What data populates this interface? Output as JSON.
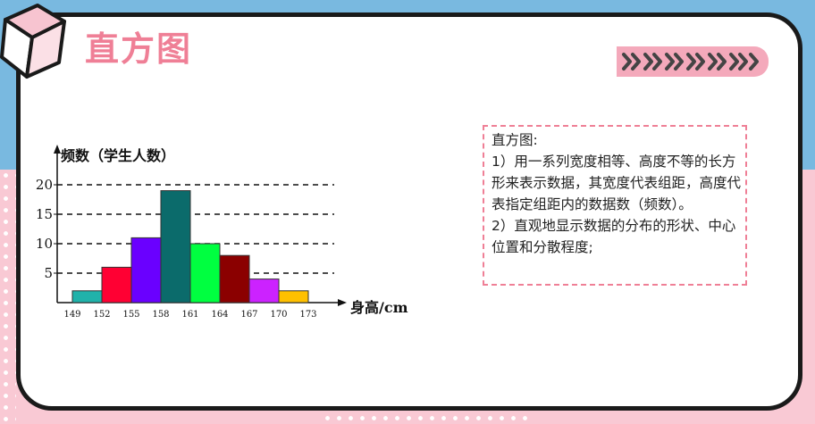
{
  "slide": {
    "title": "直方图"
  },
  "decor": {
    "chevrons_icon": "chevron-double-right-icon",
    "cube_icon": "cube-icon",
    "colors": {
      "accent_pink": "#ef7f96",
      "bg_blue": "#79b9e0",
      "bg_pink": "#f9c9d4"
    }
  },
  "description": {
    "heading": "直方图:",
    "point1": "1）用一系列宽度相等、高度不等的长方形来表示数据，其宽度代表组距，高度代表指定组距内的数据数（频数）。",
    "point2": "2）直观地显示数据的分布的形状、中心位置和分散程度;"
  },
  "chart_data": {
    "type": "bar",
    "ylabel": "频数（学生人数）",
    "xlabel": "身高/cm",
    "x_ticks": [
      "149",
      "152",
      "155",
      "158",
      "161",
      "164",
      "167",
      "170",
      "173"
    ],
    "bins": [
      {
        "from": 149,
        "to": 152,
        "value": 2,
        "color": "#20b2aa"
      },
      {
        "from": 152,
        "to": 155,
        "value": 6,
        "color": "#ff0033"
      },
      {
        "from": 155,
        "to": 158,
        "value": 11,
        "color": "#6a00ff"
      },
      {
        "from": 158,
        "to": 161,
        "value": 19,
        "color": "#0b6b6b"
      },
      {
        "from": 161,
        "to": 164,
        "value": 10,
        "color": "#00ff40"
      },
      {
        "from": 164,
        "to": 167,
        "value": 8,
        "color": "#8b0000"
      },
      {
        "from": 167,
        "to": 170,
        "value": 4,
        "color": "#cc22ff"
      },
      {
        "from": 170,
        "to": 173,
        "value": 2,
        "color": "#ffc000"
      }
    ],
    "y_ticks": [
      5,
      10,
      15,
      20
    ],
    "dashed_gridlines": [
      5,
      10,
      15,
      20
    ],
    "ylim": [
      0,
      23
    ]
  }
}
